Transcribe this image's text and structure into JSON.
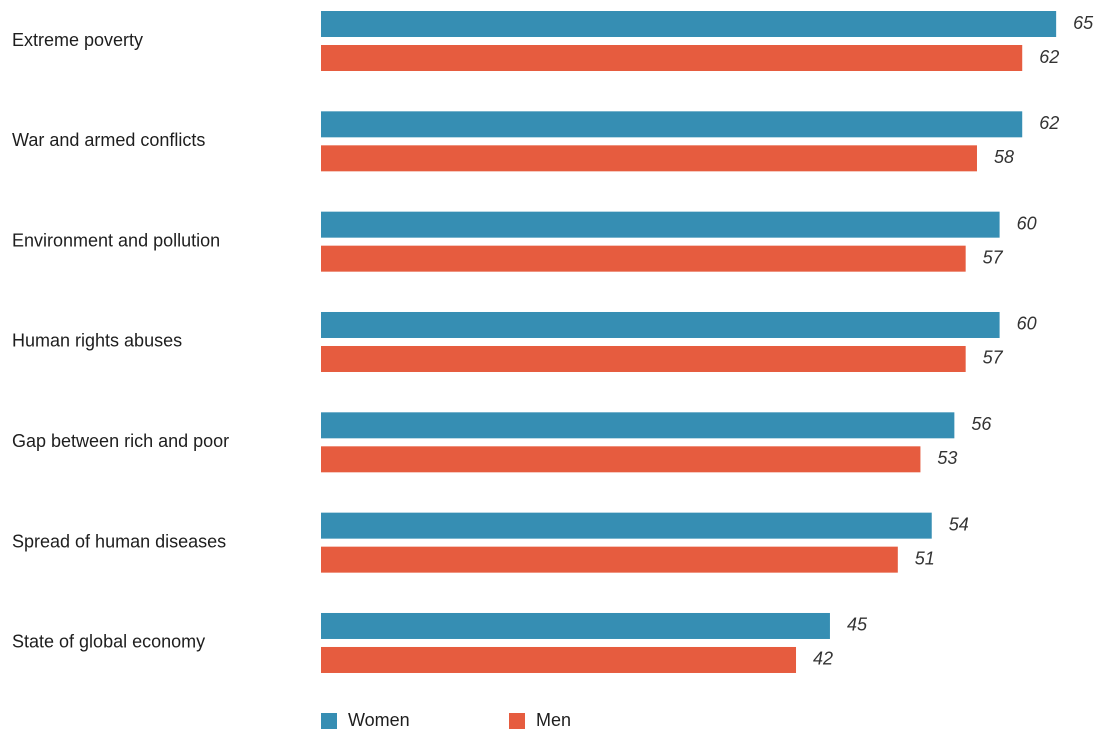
{
  "chart_data": {
    "type": "bar",
    "orientation": "horizontal",
    "categories": [
      "Extreme poverty",
      "War and armed conflicts",
      "Environment and pollution",
      "Human rights abuses",
      "Gap between rich and poor",
      "Spread of human diseases",
      "State of global economy"
    ],
    "series": [
      {
        "name": "Women",
        "color": "#368eb3",
        "values": [
          65,
          62,
          60,
          60,
          56,
          54,
          45
        ]
      },
      {
        "name": "Men",
        "color": "#e65c3f",
        "values": [
          62,
          58,
          57,
          57,
          53,
          51,
          42
        ]
      }
    ],
    "data_labels": true,
    "grid": false,
    "legend": "bottom"
  }
}
